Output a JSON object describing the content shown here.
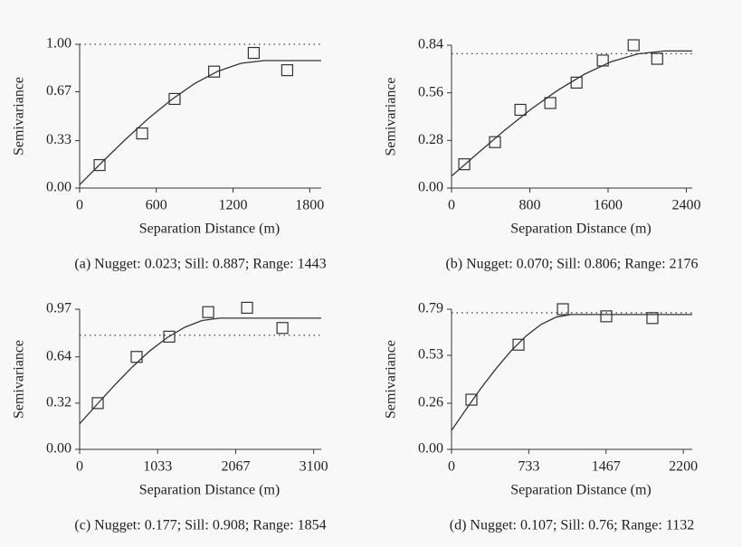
{
  "chart_data": [
    {
      "type": "scatter",
      "caption": "(a) Nugget: 0.023; Sill: 0.887; Range: 1443",
      "xlabel": "Separation Distance (m)",
      "ylabel": "Semivariance",
      "xlim": [
        0,
        1890
      ],
      "ylim": [
        0,
        1.0
      ],
      "xticks": [
        0,
        600,
        1200,
        1800
      ],
      "yticks": [
        {
          "value": 0,
          "label": "0.00"
        },
        0.33,
        0.67,
        {
          "value": 1.0,
          "label": "1.00"
        }
      ],
      "reference_line": 1.0,
      "color": "#333333",
      "series": [
        {
          "style": "markers",
          "x": [
            156,
            489,
            743,
            1052,
            1362,
            1624
          ],
          "values": [
            0.16,
            0.38,
            0.62,
            0.81,
            0.94,
            0.82
          ]
        },
        {
          "style": "line",
          "x": [
            0,
            180,
            361,
            541,
            722,
            902,
            1082,
            1263,
            1443,
            1890
          ],
          "values": [
            0.023,
            0.184,
            0.34,
            0.486,
            0.617,
            0.728,
            0.813,
            0.868,
            0.887,
            0.887
          ]
        }
      ]
    },
    {
      "type": "scatter",
      "caption": "(b) Nugget: 0.070; Sill: 0.806; Range: 2176",
      "xlabel": "Separation Distance (m)",
      "ylabel": "Semivariance",
      "xlim": [
        0,
        2460
      ],
      "ylim": [
        0,
        0.84
      ],
      "xticks": [
        0,
        800,
        1600,
        2400
      ],
      "yticks": [
        {
          "value": 0,
          "label": "0.00"
        },
        0.28,
        0.56,
        0.84
      ],
      "reference_line": 0.79,
      "color": "#333333",
      "series": [
        {
          "style": "markers",
          "x": [
            130,
            444,
            704,
            1009,
            1278,
            1546,
            1861,
            2102
          ],
          "values": [
            0.14,
            0.27,
            0.46,
            0.5,
            0.62,
            0.75,
            0.84,
            0.76
          ]
        },
        {
          "style": "line",
          "x": [
            0,
            272,
            544,
            816,
            1088,
            1360,
            1632,
            1904,
            2176,
            2460
          ],
          "values": [
            0.07,
            0.207,
            0.34,
            0.465,
            0.576,
            0.67,
            0.743,
            0.789,
            0.806,
            0.806
          ]
        }
      ]
    },
    {
      "type": "scatter",
      "caption": "(c) Nugget: 0.177; Sill: 0.908; Range: 1854",
      "xlabel": "Separation Distance (m)",
      "ylabel": "Semivariance",
      "xlim": [
        0,
        3200
      ],
      "ylim": [
        0,
        0.97
      ],
      "xticks": [
        0,
        1033,
        2067,
        3100
      ],
      "yticks": [
        {
          "value": 0,
          "label": "0.00"
        },
        0.32,
        0.64,
        0.97
      ],
      "reference_line": 0.79,
      "color": "#333333",
      "series": [
        {
          "style": "markers",
          "x": [
            240,
            755,
            1187,
            1703,
            2218,
            2686
          ],
          "values": [
            0.32,
            0.64,
            0.78,
            0.95,
            0.98,
            0.84
          ]
        },
        {
          "style": "line",
          "x": [
            0,
            232,
            464,
            695,
            927,
            1159,
            1391,
            1622,
            1854,
            3200
          ],
          "values": [
            0.177,
            0.313,
            0.445,
            0.569,
            0.68,
            0.773,
            0.845,
            0.892,
            0.908,
            0.908
          ]
        }
      ]
    },
    {
      "type": "scatter",
      "caption": "(d) Nugget: 0.107; Sill: 0.76; Range: 1132",
      "xlabel": "Separation Distance (m)",
      "ylabel": "Semivariance",
      "xlim": [
        0,
        2285
      ],
      "ylim": [
        0,
        0.79
      ],
      "xticks": [
        0,
        733,
        1467,
        2200
      ],
      "yticks": [
        {
          "value": 0,
          "label": "0.00"
        },
        0.26,
        0.53,
        0.79
      ],
      "reference_line": 0.77,
      "color": "#333333",
      "series": [
        {
          "style": "markers",
          "x": [
            189,
            636,
            1057,
            1469,
            1907
          ],
          "values": [
            0.28,
            0.59,
            0.79,
            0.75,
            0.74
          ]
        },
        {
          "style": "line",
          "x": [
            0,
            142,
            283,
            425,
            566,
            708,
            849,
            991,
            1132,
            2285
          ],
          "values": [
            0.107,
            0.229,
            0.347,
            0.457,
            0.556,
            0.639,
            0.704,
            0.745,
            0.76,
            0.76
          ]
        }
      ]
    }
  ]
}
